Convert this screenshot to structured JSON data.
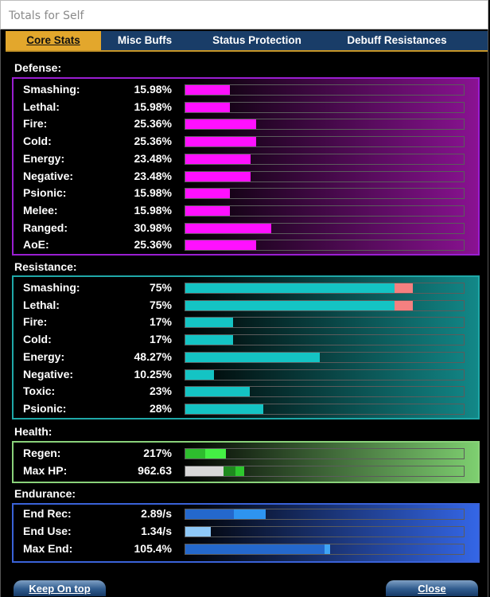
{
  "window": {
    "title": "Totals for Self"
  },
  "tabs": [
    {
      "label": "Core Stats",
      "active": true
    },
    {
      "label": "Misc Buffs",
      "active": false
    },
    {
      "label": "Status Protection",
      "active": false
    },
    {
      "label": "Debuff Resistances",
      "active": false
    }
  ],
  "defense": {
    "title": "Defense:",
    "colors": {
      "border": "#9a1ed2",
      "fill": "#ff10ff",
      "glow": "#8a1292"
    },
    "rows": [
      {
        "label": "Smashing:",
        "value": "15.98%",
        "fill": 0.1598
      },
      {
        "label": "Lethal:",
        "value": "15.98%",
        "fill": 0.1598
      },
      {
        "label": "Fire:",
        "value": "25.36%",
        "fill": 0.2536
      },
      {
        "label": "Cold:",
        "value": "25.36%",
        "fill": 0.2536
      },
      {
        "label": "Energy:",
        "value": "23.48%",
        "fill": 0.2348
      },
      {
        "label": "Negative:",
        "value": "23.48%",
        "fill": 0.2348
      },
      {
        "label": "Psionic:",
        "value": "15.98%",
        "fill": 0.1598
      },
      {
        "label": "Melee:",
        "value": "15.98%",
        "fill": 0.1598
      },
      {
        "label": "Ranged:",
        "value": "30.98%",
        "fill": 0.3098
      },
      {
        "label": "AoE:",
        "value": "25.36%",
        "fill": 0.2536
      }
    ]
  },
  "resistance": {
    "title": "Resistance:",
    "colors": {
      "border": "#1fa8a8",
      "fill": "#14c4c4",
      "over": "#f58080",
      "glow": "#128888"
    },
    "rows": [
      {
        "label": "Smashing:",
        "value": "75%",
        "fill": 0.75,
        "over": 0.066
      },
      {
        "label": "Lethal:",
        "value": "75%",
        "fill": 0.75,
        "over": 0.066
      },
      {
        "label": "Fire:",
        "value": "17%",
        "fill": 0.17
      },
      {
        "label": "Cold:",
        "value": "17%",
        "fill": 0.17
      },
      {
        "label": "Energy:",
        "value": "48.27%",
        "fill": 0.4827
      },
      {
        "label": "Negative:",
        "value": "10.25%",
        "fill": 0.1025
      },
      {
        "label": "Toxic:",
        "value": "23%",
        "fill": 0.23
      },
      {
        "label": "Psionic:",
        "value": "28%",
        "fill": 0.28
      }
    ]
  },
  "health": {
    "title": "Health:",
    "colors": {
      "border": "#8ad27a",
      "glow": "#7ecf70"
    },
    "rows": [
      {
        "label": "Regen:",
        "value": "217%",
        "segments": [
          {
            "from": 0,
            "to": 0.07,
            "color": "#2ebd2e"
          },
          {
            "from": 0.07,
            "to": 0.145,
            "color": "#44f044"
          }
        ]
      },
      {
        "label": "Max HP:",
        "value": "962.63",
        "segments": [
          {
            "from": 0,
            "to": 0.138,
            "color": "#d8d8d8"
          },
          {
            "from": 0.138,
            "to": 0.18,
            "color": "#1f8a1f"
          },
          {
            "from": 0.18,
            "to": 0.21,
            "color": "#2ec82e"
          }
        ]
      }
    ]
  },
  "endurance": {
    "title": "Endurance:",
    "colors": {
      "border": "#3a62d8",
      "glow": "#3466e6"
    },
    "rows": [
      {
        "label": "End Rec:",
        "value": "2.89/s",
        "segments": [
          {
            "from": 0,
            "to": 0.175,
            "color": "#2468cc"
          },
          {
            "from": 0.175,
            "to": 0.29,
            "color": "#2e94f0"
          }
        ]
      },
      {
        "label": "End Use:",
        "value": "1.34/s",
        "segments": [
          {
            "from": 0,
            "to": 0.09,
            "color": "#8ec8f8"
          }
        ]
      },
      {
        "label": "Max End:",
        "value": "105.4%",
        "segments": [
          {
            "from": 0,
            "to": 0.5,
            "color": "#2468cc"
          },
          {
            "from": 0.5,
            "to": 0.52,
            "color": "#3fa4f5"
          }
        ]
      }
    ]
  },
  "buttons": {
    "keep_on_top": "Keep On top",
    "close": "Close"
  }
}
